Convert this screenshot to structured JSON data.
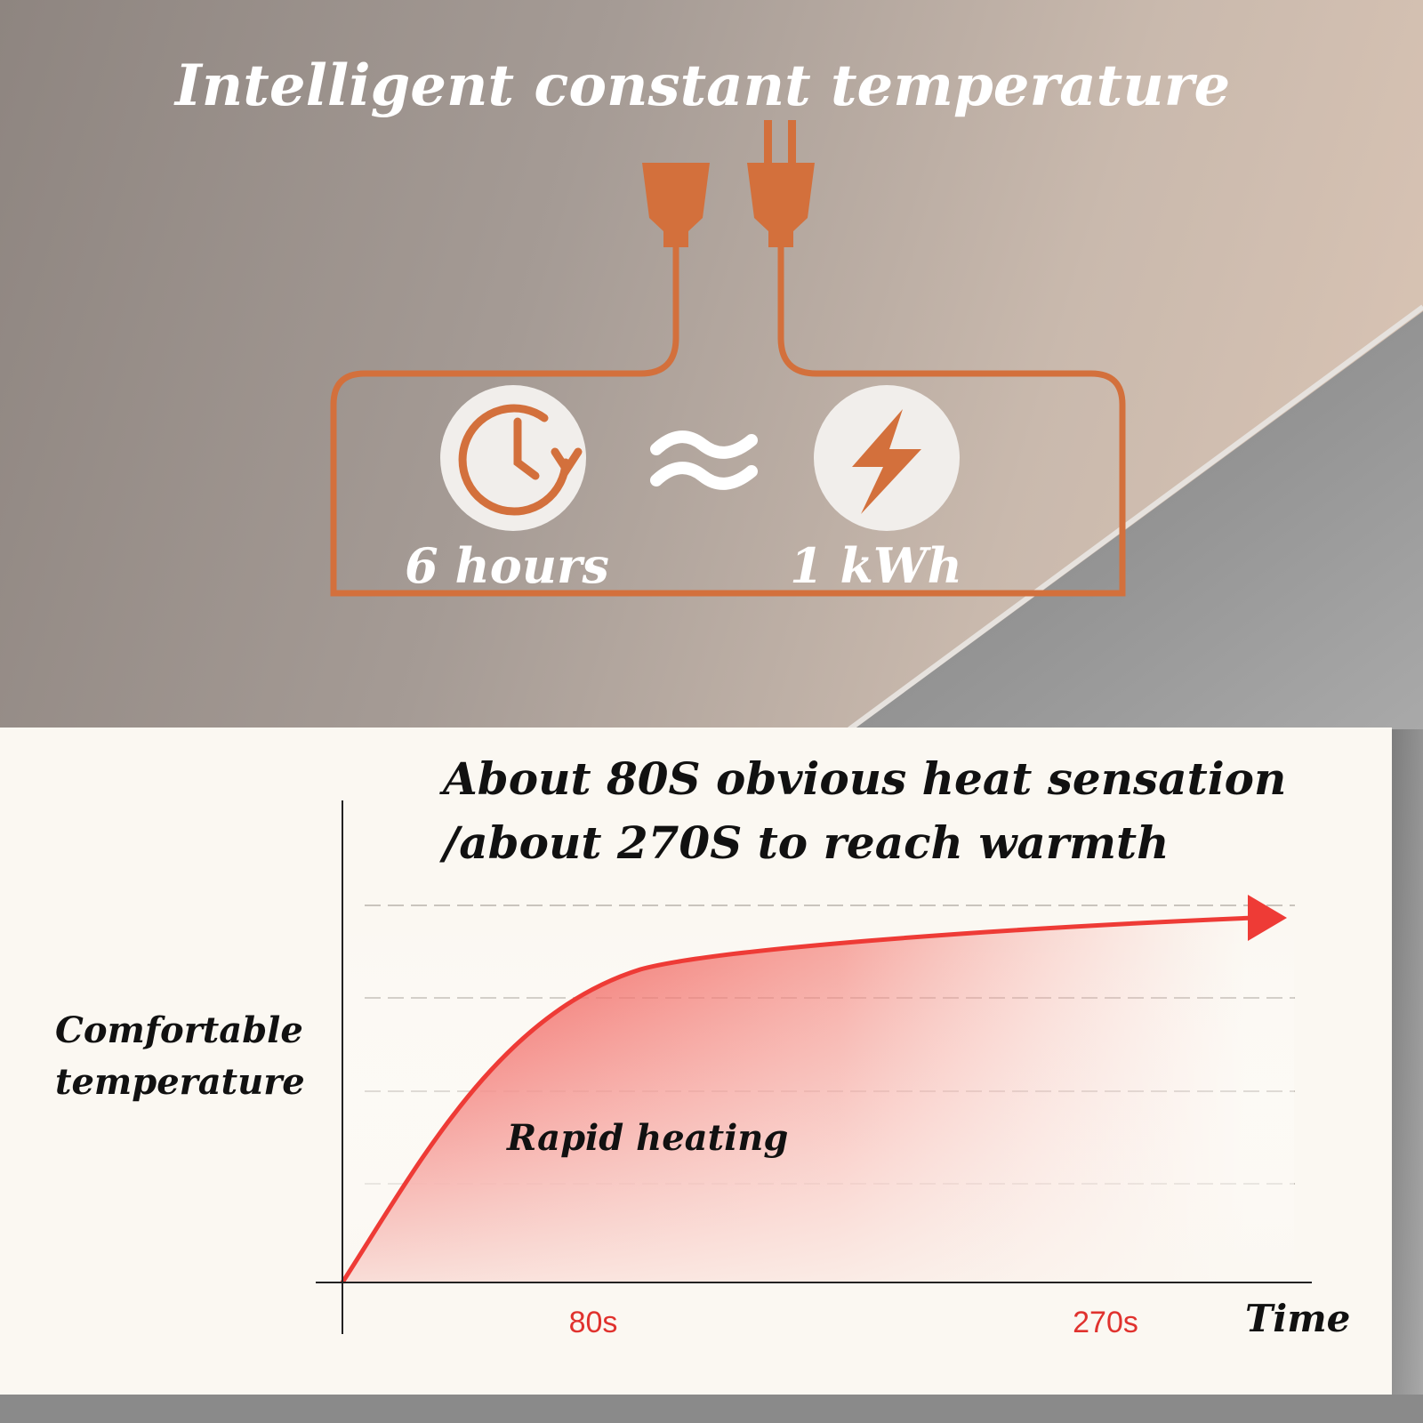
{
  "header": {
    "title": "Intelligent constant temperature"
  },
  "equivalence": {
    "left": "6 hours",
    "right": "1 kWh"
  },
  "graph": {
    "title_lines": [
      "About 80S obvious heat sensation",
      "/about 270S to reach warmth"
    ],
    "y_label_lines": [
      "Comfortable",
      "temperature"
    ],
    "annotation": "Rapid heating",
    "x_labels": [
      "80s",
      "270s"
    ],
    "x_axis_label": "Time"
  }
}
